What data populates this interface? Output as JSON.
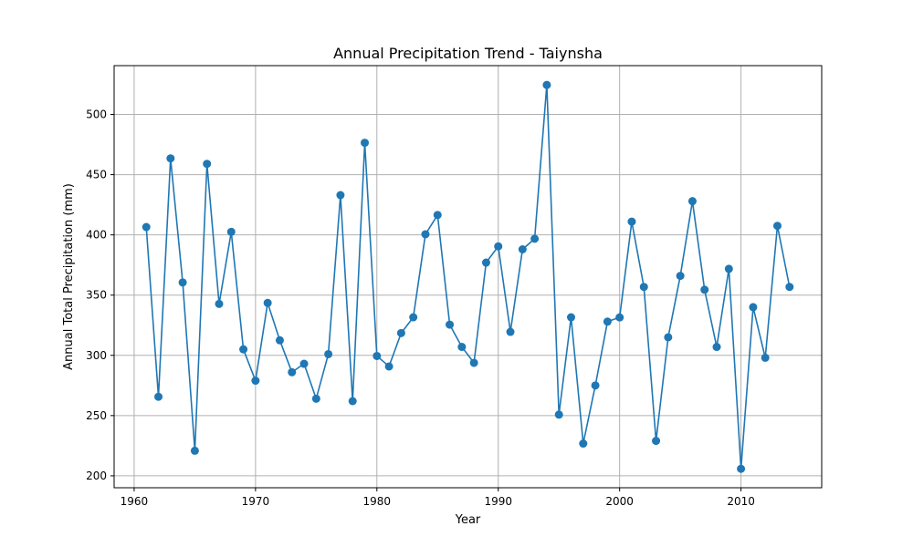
{
  "chart_data": {
    "type": "line",
    "title": "Annual Precipitation Trend - Taiynsha",
    "xlabel": "Year",
    "ylabel": "Annual Total Precipitation (mm)",
    "xlim": [
      1958.35,
      2016.65
    ],
    "ylim": [
      190.1,
      540.5
    ],
    "xticks": [
      1960,
      1970,
      1980,
      1990,
      2000,
      2010
    ],
    "yticks": [
      200,
      250,
      300,
      350,
      400,
      450,
      500
    ],
    "grid": true,
    "marker": "circle",
    "color": "#1f77b4",
    "series": [
      {
        "x": [
          1961,
          1962,
          1963,
          1964,
          1965,
          1966,
          1967,
          1968,
          1969,
          1970,
          1971,
          1972,
          1973,
          1974,
          1975,
          1976,
          1977,
          1978,
          1979,
          1980,
          1981,
          1982,
          1983,
          1984,
          1985,
          1986,
          1987,
          1988,
          1989,
          1990,
          1991,
          1992,
          1993,
          1994,
          1995,
          1996,
          1997,
          1998,
          1999,
          2000,
          2001,
          2002,
          2003,
          2004,
          2005,
          2006,
          2007,
          2008,
          2009,
          2010,
          2011,
          2012,
          2013,
          2014
        ],
        "values": [
          406.5,
          265.6,
          463.5,
          360.5,
          220.8,
          459.0,
          342.7,
          402.5,
          305.0,
          279.0,
          343.5,
          312.5,
          286.0,
          293.0,
          264.0,
          301.0,
          433.0,
          262.0,
          476.5,
          299.5,
          290.8,
          318.5,
          331.6,
          400.5,
          416.5,
          325.5,
          307.0,
          293.8,
          377.0,
          390.5,
          319.5,
          388.0,
          396.8,
          524.5,
          250.8,
          331.6,
          226.8,
          275.0,
          328.0,
          331.5,
          411.0,
          356.8,
          229.0,
          315.0,
          366.0,
          428.0,
          354.5,
          307.0,
          371.8,
          205.8,
          340.0,
          298.0,
          407.5,
          356.8
        ]
      }
    ]
  }
}
